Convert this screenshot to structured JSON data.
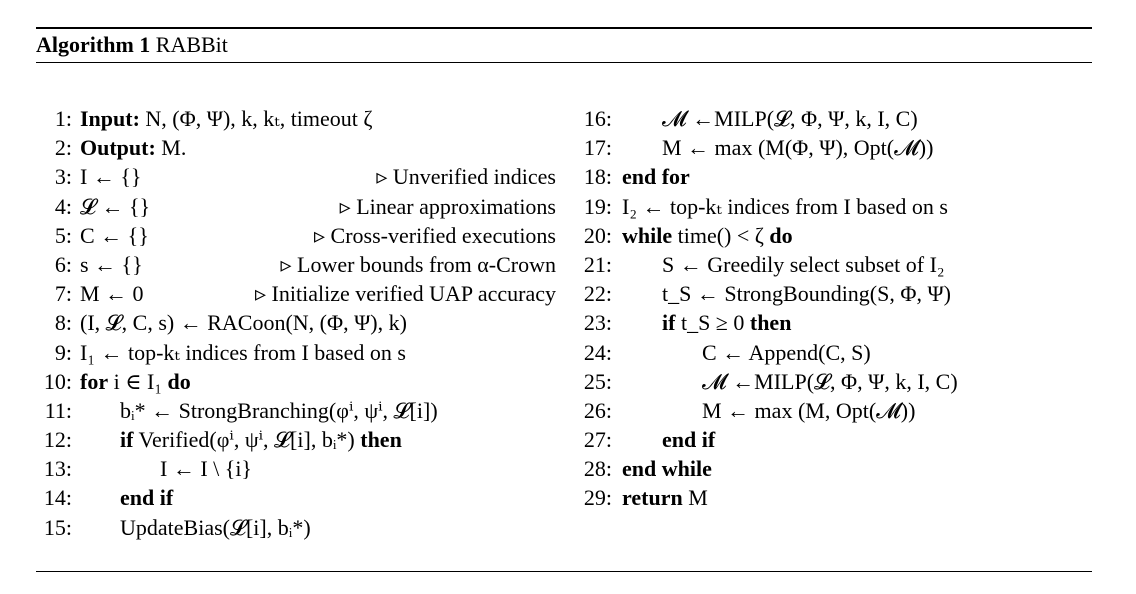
{
  "algorithm": {
    "label": "Algorithm 1",
    "name": "RABBit"
  },
  "left_lines": [
    {
      "n": "1:",
      "indent": 0,
      "text": "Input: N, (Φ, Ψ), k, kₜ, timeout ζ",
      "comment": ""
    },
    {
      "n": "2:",
      "indent": 0,
      "text": "Output: M.",
      "comment": ""
    },
    {
      "n": "3:",
      "indent": 0,
      "text": "I ← {}",
      "comment": "▹ Unverified indices"
    },
    {
      "n": "4:",
      "indent": 0,
      "text": "𝓛 ← {}",
      "comment": "▹ Linear approximations"
    },
    {
      "n": "5:",
      "indent": 0,
      "text": "C ← {}",
      "comment": "▹ Cross-verified executions"
    },
    {
      "n": "6:",
      "indent": 0,
      "text": "s ← {}",
      "comment": "▹ Lower bounds from α-Crown"
    },
    {
      "n": "7:",
      "indent": 0,
      "text": "M ← 0",
      "comment": "▹ Initialize verified UAP accuracy"
    },
    {
      "n": "8:",
      "indent": 0,
      "text": "(I, 𝓛, C, s) ← RACoon(N, (Φ, Ψ), k)",
      "comment": ""
    },
    {
      "n": "9:",
      "indent": 0,
      "text": "I₁ ← top-kₜ indices from I based on s",
      "comment": ""
    },
    {
      "n": "10:",
      "indent": 0,
      "text": "for i ∈ I₁ do",
      "comment": ""
    },
    {
      "n": "11:",
      "indent": 1,
      "text": "bᵢ* ← StrongBranching(φⁱ, ψⁱ, 𝓛[i])",
      "comment": ""
    },
    {
      "n": "12:",
      "indent": 1,
      "text": "if Verified(φⁱ, ψⁱ, 𝓛[i], bᵢ*) then",
      "comment": ""
    },
    {
      "n": "13:",
      "indent": 2,
      "text": "I ← I \\ {i}",
      "comment": ""
    },
    {
      "n": "14:",
      "indent": 1,
      "text": "end if",
      "comment": ""
    },
    {
      "n": "15:",
      "indent": 1,
      "text": "UpdateBias(𝓛[i], bᵢ*)",
      "comment": ""
    }
  ],
  "right_lines": [
    {
      "n": "16:",
      "indent": 1,
      "text": "𝓜 ←MILP(𝓛, Φ, Ψ, k, I, C)",
      "comment": ""
    },
    {
      "n": "17:",
      "indent": 1,
      "text": "M ← max (M(Φ, Ψ), Opt(𝓜))",
      "comment": ""
    },
    {
      "n": "18:",
      "indent": 0,
      "text": "end for",
      "comment": ""
    },
    {
      "n": "19:",
      "indent": 0,
      "text": "I₂ ← top-kₜ indices from I based on s",
      "comment": ""
    },
    {
      "n": "20:",
      "indent": 0,
      "text": "while time() < ζ do",
      "comment": ""
    },
    {
      "n": "21:",
      "indent": 1,
      "text": "S ← Greedily select subset of I₂",
      "comment": ""
    },
    {
      "n": "22:",
      "indent": 1,
      "text": "t_S ← StrongBounding(S, Φ, Ψ)",
      "comment": ""
    },
    {
      "n": "23:",
      "indent": 1,
      "text": "if t_S ≥ 0 then",
      "comment": ""
    },
    {
      "n": "24:",
      "indent": 2,
      "text": "C ← Append(C, S)",
      "comment": ""
    },
    {
      "n": "25:",
      "indent": 2,
      "text": "𝓜 ←MILP(𝓛, Φ, Ψ, k, I, C)",
      "comment": ""
    },
    {
      "n": "26:",
      "indent": 2,
      "text": "M ← max (M, Opt(𝓜))",
      "comment": ""
    },
    {
      "n": "27:",
      "indent": 1,
      "text": "end if",
      "comment": ""
    },
    {
      "n": "28:",
      "indent": 0,
      "text": "end while",
      "comment": ""
    },
    {
      "n": "29:",
      "indent": 0,
      "text": "return M",
      "comment": ""
    }
  ]
}
